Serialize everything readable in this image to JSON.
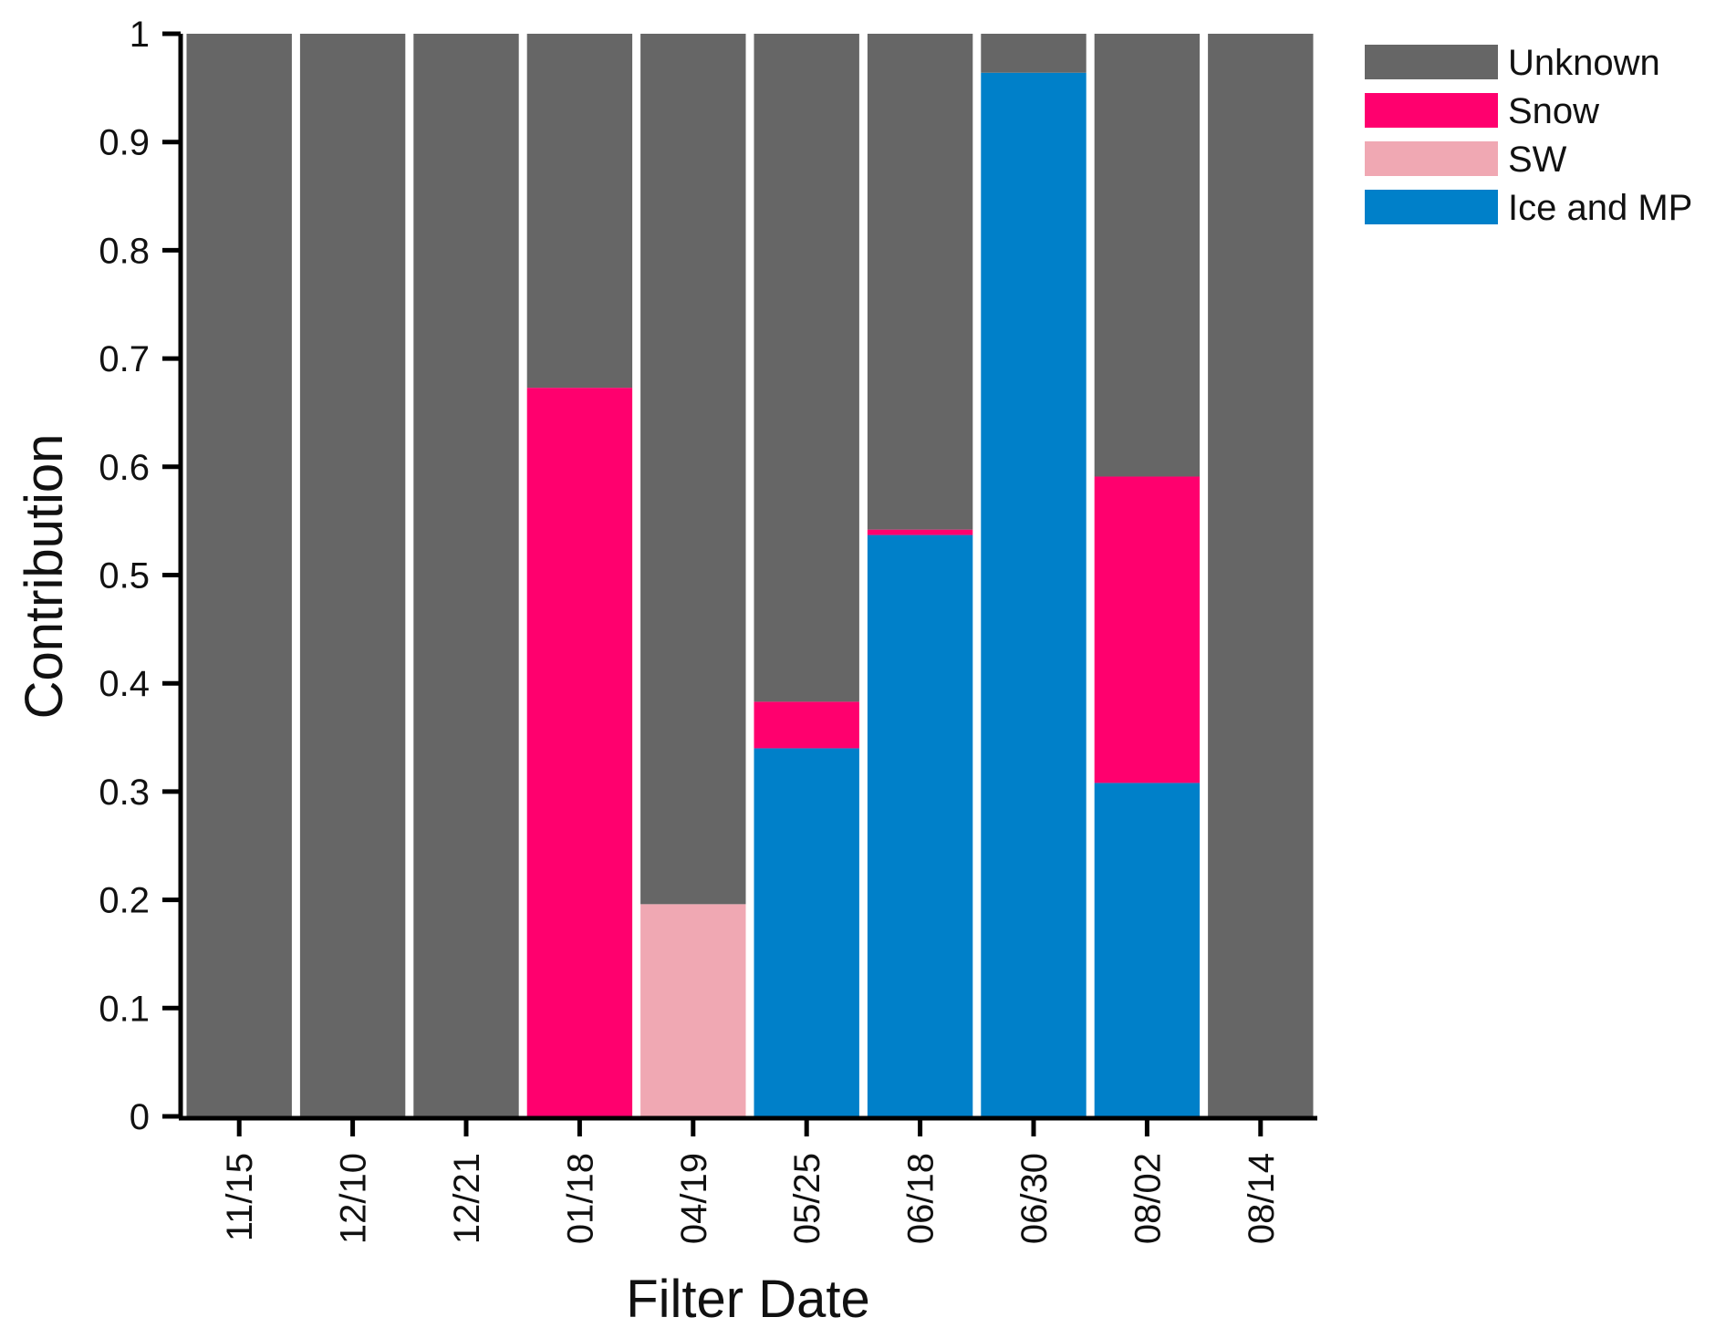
{
  "chart_data": {
    "type": "bar",
    "stacked": true,
    "title": "",
    "xlabel": "Filter Date",
    "ylabel": "Contribution",
    "ylim": [
      0,
      1
    ],
    "yticks": [
      "0",
      "0.1",
      "0.2",
      "0.3",
      "0.4",
      "0.5",
      "0.6",
      "0.7",
      "0.8",
      "0.9",
      "1"
    ],
    "grid": false,
    "legend_position": "top-right",
    "categories": [
      "11/15",
      "12/10",
      "12/21",
      "01/18",
      "04/19",
      "05/25",
      "06/18",
      "06/30",
      "08/02",
      "08/14"
    ],
    "series": [
      {
        "name": "Ice and MP",
        "color": "#0080C9",
        "values": [
          0,
          0,
          0,
          0,
          0,
          0.34,
          0.537,
          0.964,
          0.308,
          0
        ]
      },
      {
        "name": "SW",
        "color": "#F0A8B3",
        "values": [
          0,
          0,
          0,
          0,
          0.196,
          0,
          0,
          0,
          0,
          0
        ]
      },
      {
        "name": "Snow",
        "color": "#FF006E",
        "values": [
          0,
          0,
          0,
          0.673,
          0,
          0.043,
          0.005,
          0,
          0.283,
          0
        ]
      },
      {
        "name": "Unknown",
        "color": "#666666",
        "values": [
          1,
          1,
          1,
          0.327,
          0.804,
          0.617,
          0.458,
          0.036,
          0.409,
          1
        ]
      }
    ],
    "legend_order": [
      "Unknown",
      "Snow",
      "SW",
      "Ice and MP"
    ]
  }
}
